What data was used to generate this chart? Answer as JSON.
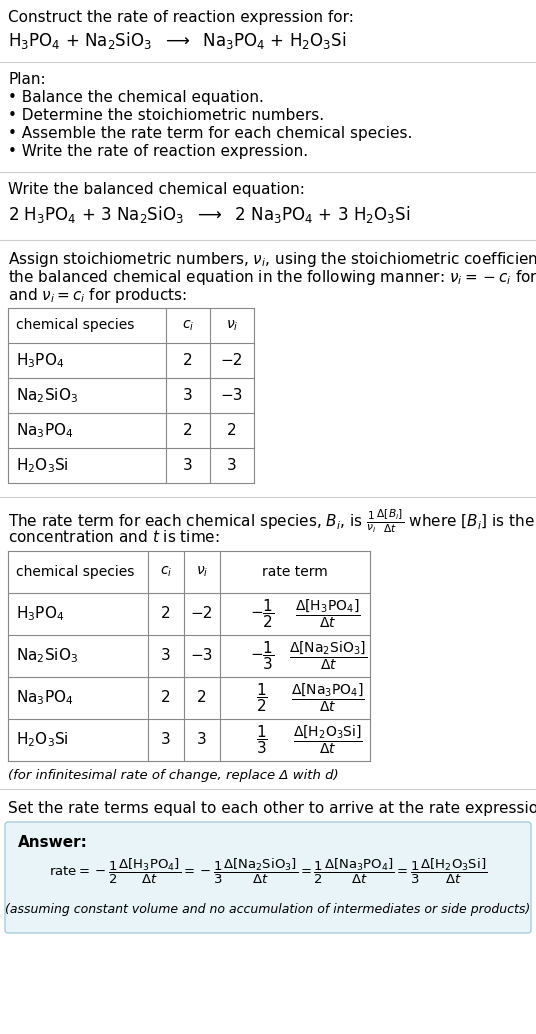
{
  "title_line1": "Construct the rate of reaction expression for:",
  "plan_header": "Plan:",
  "plan_items": [
    "• Balance the chemical equation.",
    "• Determine the stoichiometric numbers.",
    "• Assemble the rate term for each chemical species.",
    "• Write the rate of reaction expression."
  ],
  "balanced_header": "Write the balanced chemical equation:",
  "stoich_intro_line1": "Assign stoichiometric numbers, $\\nu_i$, using the stoichiometric coefficients, $c_i$, from",
  "stoich_intro_line2": "the balanced chemical equation in the following manner: $\\nu_i = -c_i$ for reactants",
  "stoich_intro_line3": "and $\\nu_i = c_i$ for products:",
  "rate_intro_line1": "The rate term for each chemical species, $B_i$, is $\\frac{1}{\\nu_i}\\frac{\\Delta[B_i]}{\\Delta t}$ where $[B_i]$ is the amount",
  "rate_intro_line2": "concentration and $t$ is time:",
  "infinitesimal_note": "(for infinitesimal rate of change, replace Δ with d)",
  "set_equal_text": "Set the rate terms equal to each other to arrive at the rate expression:",
  "answer_label": "Answer:",
  "answer_bg_color": "#e8f4f8",
  "answer_border_color": "#aaccdd",
  "assuming_note": "(assuming constant volume and no accumulation of intermediates or side products)",
  "bg_color": "#ffffff",
  "text_color": "#000000",
  "table_border_color": "#888888",
  "separator_color": "#cccccc",
  "chem_species": [
    "$\\mathregular{H_3PO_4}$",
    "$\\mathregular{Na_2SiO_3}$",
    "$\\mathregular{Na_3PO_4}$",
    "$\\mathregular{H_2O_3Si}$"
  ],
  "ci_vals": [
    "2",
    "3",
    "2",
    "3"
  ],
  "nu_vals": [
    "−2",
    "−3",
    "2",
    "3"
  ]
}
